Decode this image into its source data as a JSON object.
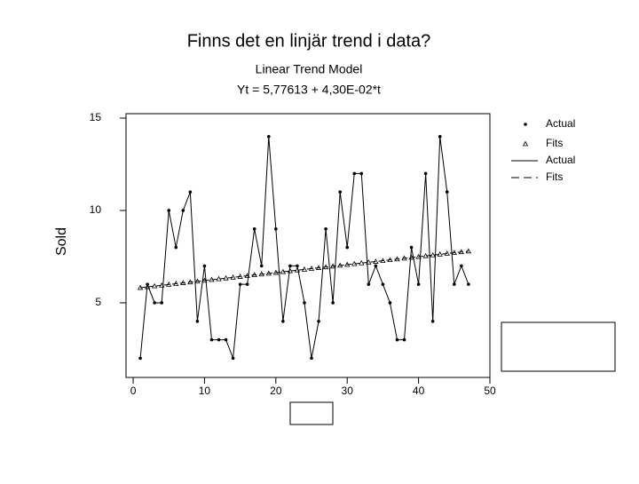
{
  "chart_data": {
    "type": "line",
    "title": "Finns det en linjär trend i data?",
    "subtitle": "Linear Trend Model",
    "equation": "Yt = 5,77613 + 4,30E-02*t",
    "ylabel": "Sold",
    "x": [
      1,
      2,
      3,
      4,
      5,
      6,
      7,
      8,
      9,
      10,
      11,
      12,
      13,
      14,
      15,
      16,
      17,
      18,
      19,
      20,
      21,
      22,
      23,
      24,
      25,
      26,
      27,
      28,
      29,
      30,
      31,
      32,
      33,
      34,
      35,
      36,
      37,
      38,
      39,
      40,
      41,
      42,
      43,
      44,
      45,
      46,
      47
    ],
    "series": [
      {
        "name": "Actual",
        "color": "#000000",
        "marker": "dot",
        "line": "solid",
        "values": [
          2,
          6,
          5,
          5,
          10,
          8,
          10,
          11,
          4,
          7,
          3,
          3,
          3,
          2,
          6,
          6,
          9,
          7,
          14,
          9,
          4,
          7,
          7,
          5,
          2,
          4,
          9,
          5,
          11,
          8,
          12,
          12,
          6,
          7,
          6,
          5,
          3,
          3,
          8,
          6,
          12,
          4,
          14,
          11,
          6,
          7,
          6
        ]
      },
      {
        "name": "Fits",
        "color": "#000000",
        "marker": "triangle",
        "line": "dashed",
        "values": [
          5.819,
          5.862,
          5.905,
          5.948,
          5.991,
          6.034,
          6.077,
          6.12,
          6.163,
          6.206,
          6.249,
          6.292,
          6.335,
          6.378,
          6.421,
          6.464,
          6.507,
          6.55,
          6.593,
          6.636,
          6.679,
          6.722,
          6.765,
          6.808,
          6.851,
          6.894,
          6.937,
          6.98,
          7.023,
          7.066,
          7.109,
          7.152,
          7.195,
          7.238,
          7.281,
          7.324,
          7.367,
          7.41,
          7.453,
          7.496,
          7.539,
          7.582,
          7.625,
          7.668,
          7.711,
          7.754,
          7.797
        ]
      }
    ],
    "xlim": [
      -1,
      50
    ],
    "xticks": [
      0,
      10,
      20,
      30,
      40,
      50
    ],
    "ylim": [
      0.96,
      15.24
    ],
    "yticks": [
      5,
      10,
      15
    ],
    "grid": false,
    "legend": "right"
  }
}
